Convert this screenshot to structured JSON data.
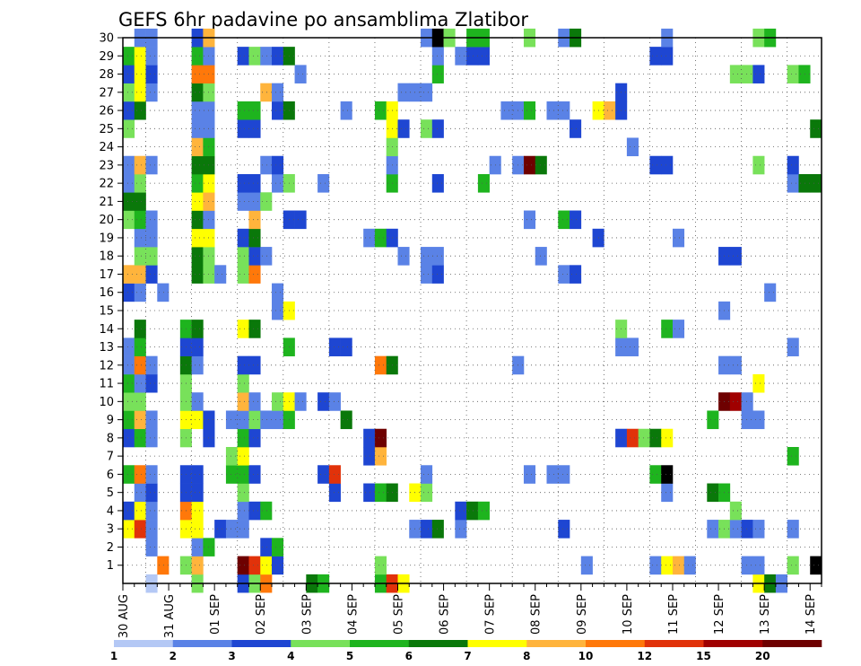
{
  "chart_data": {
    "type": "heatmap",
    "title": "GEFS 6hr padavine po ansamblima Zlatibor",
    "x_tick_labels": [
      "30 AUG",
      "31 AUG",
      "01 SEP",
      "02 SEP",
      "03 SEP",
      "04 SEP",
      "05 SEP",
      "06 SEP",
      "07 SEP",
      "08 SEP",
      "09 SEP",
      "10 SEP",
      "11 SEP",
      "12 SEP",
      "13 SEP",
      "14 SEP"
    ],
    "x_steps_6h": 61,
    "y_tick_labels": [
      1,
      2,
      3,
      4,
      5,
      6,
      7,
      8,
      9,
      10,
      11,
      12,
      13,
      14,
      15,
      16,
      17,
      18,
      19,
      20,
      21,
      22,
      23,
      24,
      25,
      26,
      27,
      28,
      29,
      30
    ],
    "y_range": [
      0,
      30
    ],
    "grid": true,
    "colorbar": {
      "labels": [
        "1",
        "2",
        "3",
        "4",
        "5",
        "6",
        "7",
        "8",
        "10",
        "12",
        "15",
        "20"
      ],
      "colors": [
        "#b4c8f5",
        "#5a82e6",
        "#1e46d2",
        "#78e15a",
        "#1eb41e",
        "#0a780a",
        "#ffff00",
        "#ffb43c",
        "#ff780a",
        "#e1320a",
        "#a00000",
        "#6e0000"
      ]
    },
    "cells": [
      [
        0,
        2,
        0
      ],
      [
        0,
        6,
        3
      ],
      [
        0,
        10,
        2
      ],
      [
        0,
        11,
        3
      ],
      [
        0,
        12,
        8
      ],
      [
        0,
        16,
        5
      ],
      [
        0,
        17,
        4
      ],
      [
        0,
        22,
        4
      ],
      [
        0,
        23,
        9
      ],
      [
        0,
        24,
        6
      ],
      [
        0,
        55,
        6
      ],
      [
        0,
        56,
        5
      ],
      [
        0,
        57,
        1
      ],
      [
        1,
        3,
        8
      ],
      [
        1,
        5,
        3
      ],
      [
        1,
        6,
        7
      ],
      [
        1,
        10,
        11
      ],
      [
        1,
        11,
        9
      ],
      [
        1,
        12,
        6
      ],
      [
        1,
        13,
        2
      ],
      [
        1,
        22,
        3
      ],
      [
        1,
        40,
        1
      ],
      [
        1,
        46,
        1
      ],
      [
        1,
        47,
        6
      ],
      [
        1,
        48,
        7
      ],
      [
        1,
        49,
        1
      ],
      [
        1,
        54,
        1
      ],
      [
        1,
        55,
        1
      ],
      [
        1,
        58,
        3
      ],
      [
        1,
        60,
        12
      ],
      [
        2,
        2,
        1
      ],
      [
        2,
        6,
        1
      ],
      [
        2,
        7,
        4
      ],
      [
        2,
        12,
        2
      ],
      [
        2,
        13,
        4
      ],
      [
        3,
        0,
        6
      ],
      [
        3,
        1,
        9
      ],
      [
        3,
        2,
        1
      ],
      [
        3,
        5,
        6
      ],
      [
        3,
        6,
        6
      ],
      [
        3,
        8,
        2
      ],
      [
        3,
        9,
        1
      ],
      [
        3,
        10,
        1
      ],
      [
        3,
        25,
        1
      ],
      [
        3,
        26,
        2
      ],
      [
        3,
        27,
        5
      ],
      [
        3,
        29,
        1
      ],
      [
        3,
        38,
        2
      ],
      [
        3,
        51,
        1
      ],
      [
        3,
        52,
        3
      ],
      [
        3,
        53,
        1
      ],
      [
        3,
        54,
        2
      ],
      [
        3,
        55,
        1
      ],
      [
        3,
        58,
        1
      ],
      [
        4,
        0,
        2
      ],
      [
        4,
        1,
        6
      ],
      [
        4,
        2,
        1
      ],
      [
        4,
        5,
        8
      ],
      [
        4,
        6,
        6
      ],
      [
        4,
        10,
        1
      ],
      [
        4,
        11,
        2
      ],
      [
        4,
        12,
        4
      ],
      [
        4,
        29,
        2
      ],
      [
        4,
        30,
        5
      ],
      [
        4,
        31,
        4
      ],
      [
        4,
        53,
        3
      ],
      [
        5,
        1,
        1
      ],
      [
        5,
        2,
        2
      ],
      [
        5,
        5,
        2
      ],
      [
        5,
        6,
        2
      ],
      [
        5,
        10,
        3
      ],
      [
        5,
        18,
        2
      ],
      [
        5,
        21,
        2
      ],
      [
        5,
        22,
        4
      ],
      [
        5,
        23,
        5
      ],
      [
        5,
        25,
        6
      ],
      [
        5,
        26,
        3
      ],
      [
        5,
        47,
        1
      ],
      [
        5,
        51,
        5
      ],
      [
        5,
        52,
        4
      ],
      [
        6,
        0,
        4
      ],
      [
        6,
        1,
        8
      ],
      [
        6,
        2,
        1
      ],
      [
        6,
        5,
        2
      ],
      [
        6,
        6,
        2
      ],
      [
        6,
        9,
        4
      ],
      [
        6,
        10,
        4
      ],
      [
        6,
        11,
        2
      ],
      [
        6,
        17,
        2
      ],
      [
        6,
        18,
        9
      ],
      [
        6,
        26,
        1
      ],
      [
        6,
        35,
        1
      ],
      [
        6,
        37,
        1
      ],
      [
        6,
        38,
        1
      ],
      [
        6,
        46,
        4
      ],
      [
        6,
        47,
        12
      ],
      [
        7,
        9,
        3
      ],
      [
        7,
        10,
        6
      ],
      [
        7,
        21,
        2
      ],
      [
        7,
        22,
        7
      ],
      [
        7,
        58,
        4
      ],
      [
        8,
        0,
        2
      ],
      [
        8,
        1,
        4
      ],
      [
        8,
        2,
        1
      ],
      [
        8,
        5,
        3
      ],
      [
        8,
        7,
        2
      ],
      [
        8,
        10,
        4
      ],
      [
        8,
        11,
        2
      ],
      [
        8,
        21,
        2
      ],
      [
        8,
        22,
        11
      ],
      [
        8,
        43,
        2
      ],
      [
        8,
        44,
        9
      ],
      [
        8,
        45,
        3
      ],
      [
        8,
        46,
        5
      ],
      [
        8,
        47,
        6
      ],
      [
        9,
        0,
        4
      ],
      [
        9,
        1,
        7
      ],
      [
        9,
        2,
        1
      ],
      [
        9,
        5,
        6
      ],
      [
        9,
        6,
        6
      ],
      [
        9,
        7,
        2
      ],
      [
        9,
        9,
        1
      ],
      [
        9,
        10,
        1
      ],
      [
        9,
        11,
        3
      ],
      [
        9,
        12,
        1
      ],
      [
        9,
        13,
        1
      ],
      [
        9,
        14,
        4
      ],
      [
        9,
        19,
        5
      ],
      [
        9,
        51,
        4
      ],
      [
        9,
        54,
        1
      ],
      [
        9,
        55,
        1
      ],
      [
        10,
        0,
        3
      ],
      [
        10,
        1,
        3
      ],
      [
        10,
        5,
        3
      ],
      [
        10,
        6,
        1
      ],
      [
        10,
        10,
        7
      ],
      [
        10,
        11,
        1
      ],
      [
        10,
        13,
        3
      ],
      [
        10,
        14,
        6
      ],
      [
        10,
        15,
        1
      ],
      [
        10,
        17,
        2
      ],
      [
        10,
        18,
        1
      ],
      [
        10,
        52,
        11
      ],
      [
        10,
        53,
        10
      ],
      [
        10,
        54,
        1
      ],
      [
        11,
        0,
        4
      ],
      [
        11,
        1,
        1
      ],
      [
        11,
        2,
        2
      ],
      [
        11,
        5,
        3
      ],
      [
        11,
        10,
        3
      ],
      [
        11,
        55,
        6
      ],
      [
        12,
        0,
        1
      ],
      [
        12,
        1,
        8
      ],
      [
        12,
        2,
        1
      ],
      [
        12,
        5,
        5
      ],
      [
        12,
        6,
        1
      ],
      [
        12,
        10,
        2
      ],
      [
        12,
        11,
        2
      ],
      [
        12,
        22,
        8
      ],
      [
        12,
        23,
        5
      ],
      [
        12,
        34,
        1
      ],
      [
        12,
        52,
        1
      ],
      [
        12,
        53,
        1
      ],
      [
        13,
        0,
        1
      ],
      [
        13,
        1,
        4
      ],
      [
        13,
        5,
        2
      ],
      [
        13,
        6,
        2
      ],
      [
        13,
        14,
        4
      ],
      [
        13,
        18,
        2
      ],
      [
        13,
        19,
        2
      ],
      [
        13,
        43,
        1
      ],
      [
        13,
        44,
        1
      ],
      [
        13,
        58,
        1
      ],
      [
        14,
        1,
        5
      ],
      [
        14,
        5,
        4
      ],
      [
        14,
        6,
        5
      ],
      [
        14,
        10,
        6
      ],
      [
        14,
        11,
        5
      ],
      [
        14,
        43,
        3
      ],
      [
        14,
        47,
        4
      ],
      [
        14,
        48,
        1
      ],
      [
        15,
        13,
        1
      ],
      [
        15,
        14,
        6
      ],
      [
        15,
        52,
        1
      ],
      [
        16,
        0,
        2
      ],
      [
        16,
        1,
        1
      ],
      [
        16,
        3,
        1
      ],
      [
        16,
        13,
        1
      ],
      [
        16,
        56,
        1
      ],
      [
        17,
        0,
        7
      ],
      [
        17,
        1,
        7
      ],
      [
        17,
        2,
        2
      ],
      [
        17,
        6,
        5
      ],
      [
        17,
        7,
        3
      ],
      [
        17,
        8,
        1
      ],
      [
        17,
        10,
        3
      ],
      [
        17,
        11,
        8
      ],
      [
        17,
        26,
        1
      ],
      [
        17,
        27,
        2
      ],
      [
        17,
        38,
        1
      ],
      [
        17,
        39,
        2
      ],
      [
        18,
        1,
        3
      ],
      [
        18,
        2,
        3
      ],
      [
        18,
        6,
        5
      ],
      [
        18,
        7,
        3
      ],
      [
        18,
        10,
        3
      ],
      [
        18,
        11,
        2
      ],
      [
        18,
        12,
        1
      ],
      [
        18,
        24,
        1
      ],
      [
        18,
        26,
        1
      ],
      [
        18,
        27,
        1
      ],
      [
        18,
        36,
        1
      ],
      [
        18,
        52,
        2
      ],
      [
        18,
        53,
        2
      ],
      [
        19,
        1,
        1
      ],
      [
        19,
        2,
        1
      ],
      [
        19,
        6,
        6
      ],
      [
        19,
        7,
        6
      ],
      [
        19,
        10,
        2
      ],
      [
        19,
        11,
        5
      ],
      [
        19,
        21,
        1
      ],
      [
        19,
        22,
        4
      ],
      [
        19,
        23,
        2
      ],
      [
        19,
        41,
        2
      ],
      [
        19,
        48,
        1
      ],
      [
        20,
        0,
        3
      ],
      [
        20,
        1,
        4
      ],
      [
        20,
        2,
        1
      ],
      [
        20,
        6,
        5
      ],
      [
        20,
        7,
        1
      ],
      [
        20,
        11,
        7
      ],
      [
        20,
        14,
        2
      ],
      [
        20,
        15,
        2
      ],
      [
        20,
        35,
        1
      ],
      [
        20,
        38,
        4
      ],
      [
        20,
        39,
        2
      ],
      [
        21,
        0,
        5
      ],
      [
        21,
        1,
        5
      ],
      [
        21,
        6,
        6
      ],
      [
        21,
        7,
        7
      ],
      [
        21,
        10,
        1
      ],
      [
        21,
        11,
        1
      ],
      [
        21,
        12,
        3
      ],
      [
        22,
        0,
        1
      ],
      [
        22,
        1,
        3
      ],
      [
        22,
        6,
        4
      ],
      [
        22,
        7,
        6
      ],
      [
        22,
        10,
        2
      ],
      [
        22,
        11,
        2
      ],
      [
        22,
        13,
        1
      ],
      [
        22,
        14,
        3
      ],
      [
        22,
        17,
        1
      ],
      [
        22,
        23,
        4
      ],
      [
        22,
        27,
        2
      ],
      [
        22,
        31,
        4
      ],
      [
        22,
        58,
        1
      ],
      [
        22,
        59,
        5
      ],
      [
        22,
        60,
        5
      ],
      [
        23,
        0,
        1
      ],
      [
        23,
        1,
        7
      ],
      [
        23,
        2,
        1
      ],
      [
        23,
        6,
        5
      ],
      [
        23,
        7,
        5
      ],
      [
        23,
        12,
        1
      ],
      [
        23,
        13,
        2
      ],
      [
        23,
        23,
        1
      ],
      [
        23,
        32,
        1
      ],
      [
        23,
        34,
        1
      ],
      [
        23,
        35,
        11
      ],
      [
        23,
        36,
        5
      ],
      [
        23,
        46,
        2
      ],
      [
        23,
        47,
        2
      ],
      [
        23,
        55,
        3
      ],
      [
        23,
        58,
        2
      ],
      [
        24,
        6,
        7
      ],
      [
        24,
        7,
        4
      ],
      [
        24,
        23,
        3
      ],
      [
        24,
        44,
        1
      ],
      [
        25,
        0,
        3
      ],
      [
        25,
        6,
        1
      ],
      [
        25,
        7,
        1
      ],
      [
        25,
        10,
        2
      ],
      [
        25,
        11,
        2
      ],
      [
        25,
        23,
        6
      ],
      [
        25,
        24,
        2
      ],
      [
        25,
        26,
        3
      ],
      [
        25,
        27,
        2
      ],
      [
        25,
        39,
        2
      ],
      [
        25,
        60,
        5
      ],
      [
        26,
        0,
        2
      ],
      [
        26,
        1,
        5
      ],
      [
        26,
        6,
        1
      ],
      [
        26,
        7,
        1
      ],
      [
        26,
        10,
        4
      ],
      [
        26,
        11,
        4
      ],
      [
        26,
        13,
        2
      ],
      [
        26,
        14,
        5
      ],
      [
        26,
        19,
        1
      ],
      [
        26,
        22,
        4
      ],
      [
        26,
        23,
        6
      ],
      [
        26,
        33,
        1
      ],
      [
        26,
        34,
        1
      ],
      [
        26,
        35,
        4
      ],
      [
        26,
        37,
        1
      ],
      [
        26,
        38,
        1
      ],
      [
        26,
        41,
        6
      ],
      [
        26,
        42,
        7
      ],
      [
        26,
        43,
        2
      ],
      [
        27,
        0,
        3
      ],
      [
        27,
        1,
        6
      ],
      [
        27,
        2,
        1
      ],
      [
        27,
        6,
        5
      ],
      [
        27,
        7,
        3
      ],
      [
        27,
        12,
        7
      ],
      [
        27,
        13,
        1
      ],
      [
        27,
        24,
        1
      ],
      [
        27,
        25,
        1
      ],
      [
        27,
        26,
        1
      ],
      [
        27,
        43,
        2
      ],
      [
        28,
        0,
        2
      ],
      [
        28,
        1,
        6
      ],
      [
        28,
        2,
        2
      ],
      [
        28,
        6,
        8
      ],
      [
        28,
        7,
        8
      ],
      [
        28,
        15,
        1
      ],
      [
        28,
        27,
        4
      ],
      [
        28,
        53,
        3
      ],
      [
        28,
        54,
        3
      ],
      [
        28,
        55,
        2
      ],
      [
        28,
        58,
        3
      ],
      [
        28,
        59,
        4
      ],
      [
        29,
        0,
        4
      ],
      [
        29,
        1,
        6
      ],
      [
        29,
        2,
        1
      ],
      [
        29,
        6,
        4
      ],
      [
        29,
        7,
        1
      ],
      [
        29,
        10,
        2
      ],
      [
        29,
        11,
        3
      ],
      [
        29,
        12,
        1
      ],
      [
        29,
        13,
        2
      ],
      [
        29,
        14,
        5
      ],
      [
        29,
        27,
        1
      ],
      [
        29,
        29,
        1
      ],
      [
        29,
        30,
        2
      ],
      [
        29,
        31,
        2
      ],
      [
        29,
        46,
        2
      ],
      [
        29,
        47,
        2
      ],
      [
        30,
        1,
        1
      ],
      [
        30,
        2,
        1
      ],
      [
        30,
        6,
        2
      ],
      [
        30,
        7,
        7
      ],
      [
        30,
        26,
        1
      ],
      [
        30,
        27,
        12
      ],
      [
        30,
        28,
        3
      ],
      [
        30,
        30,
        4
      ],
      [
        30,
        31,
        4
      ],
      [
        30,
        35,
        3
      ],
      [
        30,
        38,
        1
      ],
      [
        30,
        39,
        5
      ],
      [
        30,
        47,
        1
      ],
      [
        30,
        55,
        3
      ],
      [
        30,
        56,
        4
      ]
    ]
  }
}
